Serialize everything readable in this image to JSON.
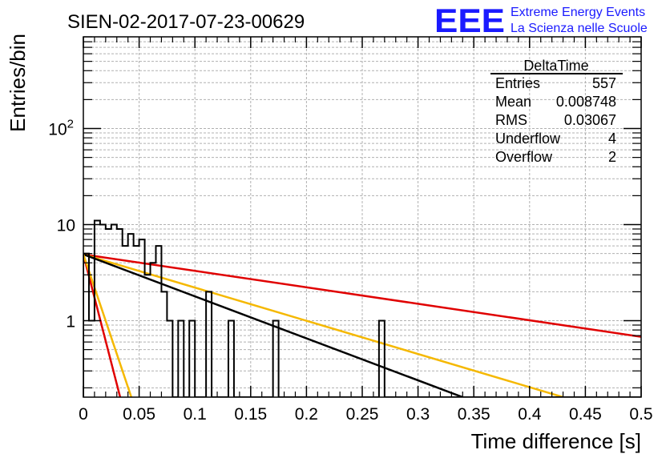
{
  "chart_data": {
    "type": "histogram",
    "title": "SIEN-02-2017-07-23-00629",
    "xlabel": "Time difference [s]",
    "ylabel": "Entries/bin",
    "xlim": [
      0,
      0.5
    ],
    "ylim": [
      0.16,
      900
    ],
    "log_y": true,
    "grid": true,
    "x_ticks": [
      "0",
      "0.05",
      "0.1",
      "0.15",
      "0.2",
      "0.25",
      "0.3",
      "0.35",
      "0.4",
      "0.45",
      "0.5"
    ],
    "y_ticks": [
      {
        "value": 1,
        "label": "1"
      },
      {
        "value": 10,
        "label": "10"
      },
      {
        "value": 100,
        "label": "10",
        "exponent": "2"
      }
    ],
    "bin_width": 0.005,
    "histogram": [
      {
        "x": 0.0,
        "y": 5
      },
      {
        "x": 0.005,
        "y": 1
      },
      {
        "x": 0.01,
        "y": 11
      },
      {
        "x": 0.015,
        "y": 10
      },
      {
        "x": 0.02,
        "y": 9
      },
      {
        "x": 0.025,
        "y": 10
      },
      {
        "x": 0.03,
        "y": 9
      },
      {
        "x": 0.035,
        "y": 6
      },
      {
        "x": 0.04,
        "y": 8
      },
      {
        "x": 0.045,
        "y": 6
      },
      {
        "x": 0.05,
        "y": 7
      },
      {
        "x": 0.055,
        "y": 3
      },
      {
        "x": 0.06,
        "y": 4
      },
      {
        "x": 0.065,
        "y": 6
      },
      {
        "x": 0.07,
        "y": 2
      },
      {
        "x": 0.075,
        "y": 1
      },
      {
        "x": 0.085,
        "y": 1
      },
      {
        "x": 0.095,
        "y": 1
      },
      {
        "x": 0.11,
        "y": 2
      },
      {
        "x": 0.13,
        "y": 1
      },
      {
        "x": 0.17,
        "y": 1
      },
      {
        "x": 0.265,
        "y": 1
      }
    ],
    "series": [
      {
        "color": "#e00000",
        "points": [
          [
            0,
            4.9
          ],
          [
            0.5,
            0.68
          ]
        ]
      },
      {
        "color": "#f5b800",
        "points": [
          [
            0,
            4.9
          ],
          [
            0.43,
            0.16
          ]
        ]
      },
      {
        "color": "#000000",
        "points": [
          [
            0,
            4.9
          ],
          [
            0.34,
            0.16
          ]
        ]
      },
      {
        "color": "#e00000",
        "points": [
          [
            0,
            4.9
          ],
          [
            0.033,
            0.16
          ]
        ]
      },
      {
        "color": "#f5b800",
        "points": [
          [
            0,
            4.9
          ],
          [
            0.043,
            0.16
          ]
        ]
      }
    ]
  },
  "stats_box": {
    "title": "DeltaTime",
    "rows": [
      {
        "label": "Entries",
        "value": "557"
      },
      {
        "label": "Mean",
        "value": "0.008748"
      },
      {
        "label": "RMS",
        "value": "0.03067"
      },
      {
        "label": "Underflow",
        "value": "4"
      },
      {
        "label": "Overflow",
        "value": "2"
      }
    ]
  },
  "logo": {
    "mark": "EEE",
    "line1": "Extreme Energy Events",
    "line2": "La Scienza nelle Scuole",
    "color": "#1a1aff"
  }
}
